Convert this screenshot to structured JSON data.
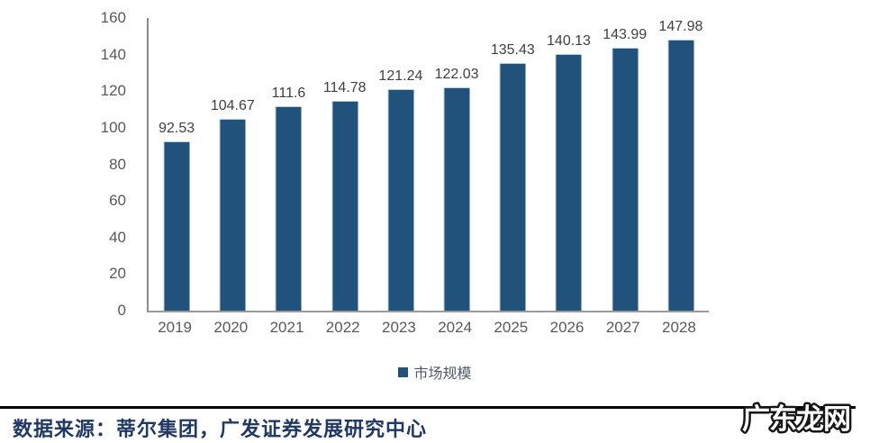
{
  "chart_data": {
    "type": "bar",
    "title": "",
    "categories": [
      "2019",
      "2020",
      "2021",
      "2022",
      "2023",
      "2024",
      "2025",
      "2026",
      "2027",
      "2028"
    ],
    "values": [
      92.53,
      104.67,
      111.6,
      114.78,
      121.24,
      122.03,
      135.43,
      140.13,
      143.99,
      147.98
    ],
    "value_labels": [
      "92.53",
      "104.67",
      "111.6",
      "114.78",
      "121.24",
      "122.03",
      "135.43",
      "140.13",
      "143.99",
      "147.98"
    ],
    "series_name": "市场规模",
    "xlabel": "",
    "ylabel": "",
    "ylim": [
      0,
      160
    ],
    "yticks": [
      0,
      20,
      40,
      60,
      80,
      100,
      120,
      140,
      160
    ],
    "grid": "off",
    "legend_position": "bottom-center",
    "bar_color": "#20527B",
    "value_label_color": "#404040",
    "tick_label_color": "#595959"
  },
  "legend": {
    "label": "市场规模"
  },
  "footer": {
    "source_text": "数据来源：蒂尔集团，广发证券发展研究中心",
    "watermark_text": "广东龙网"
  }
}
